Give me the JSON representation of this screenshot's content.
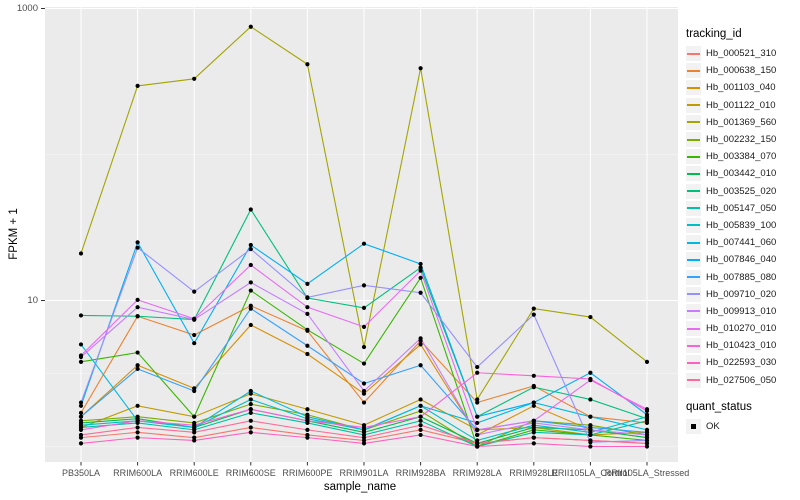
{
  "figure": {
    "background": "#ffffff",
    "panel_background": "#ebebeb",
    "grid_major_color": "#ffffff",
    "grid_minor_color": "#f7f7f7",
    "tick_mark_color": "#333333",
    "axis_text_color": "#4d4d4d"
  },
  "axes": {
    "x": {
      "title": "sample_name"
    },
    "y": {
      "title": "FPKM + 1",
      "scale": "log10",
      "ticks": [
        {
          "value": 1000,
          "label": "1000"
        },
        {
          "value": 10,
          "label": "10"
        }
      ],
      "minor_gridlines": [
        100,
        3.1623,
        1
      ]
    }
  },
  "legend": {
    "tracking": {
      "title": "tracking_id"
    },
    "quant": {
      "title": "quant_status",
      "items": [
        {
          "label": "OK"
        }
      ],
      "marker_color": "#000000"
    }
  },
  "chart_data": {
    "type": "line",
    "xlabel": "sample_name",
    "ylabel": "FPKM + 1",
    "y_scale": "log10",
    "ylim": [
      0.78,
      1100
    ],
    "grid": true,
    "legend_position": "right",
    "point_color": "#000000",
    "categories": [
      "PB350LA",
      "RRIM600LA",
      "RRIM600LE",
      "RRIM600SE",
      "RRIM600PE",
      "RRIM901LA",
      "RRIM928BA",
      "RRIM928LA",
      "RRIM928LE",
      "RRII105LA_Control",
      "RRII105LA_Stressed"
    ],
    "series": [
      {
        "name": "Hb_000521_310",
        "color": "#F8766D",
        "values": [
          1.15,
          1.25,
          1.15,
          1.35,
          1.2,
          1.1,
          1.3,
          1.05,
          1.15,
          1.1,
          1.05
        ]
      },
      {
        "name": "Hb_000638_150",
        "color": "#EA8331",
        "values": [
          1.7,
          7.8,
          5.8,
          9.2,
          6.2,
          2.0,
          5.3,
          2.0,
          2.6,
          1.6,
          1.45
        ]
      },
      {
        "name": "Hb_001103_040",
        "color": "#D89000",
        "values": [
          1.6,
          3.6,
          2.5,
          6.8,
          4.3,
          2.3,
          5.0,
          1.2,
          1.9,
          1.3,
          1.15
        ]
      },
      {
        "name": "Hb_001122_010",
        "color": "#C09B00",
        "values": [
          1.35,
          1.9,
          1.6,
          2.3,
          1.8,
          1.4,
          2.1,
          1.3,
          1.35,
          1.2,
          1.25
        ]
      },
      {
        "name": "Hb_001369_560",
        "color": "#A3A500",
        "values": [
          21,
          295,
          330,
          750,
          415,
          4.8,
          390,
          2.1,
          8.8,
          7.7,
          3.8
        ]
      },
      {
        "name": "Hb_002232_150",
        "color": "#7CAE00",
        "values": [
          1.5,
          1.6,
          1.45,
          1.95,
          1.65,
          1.3,
          1.75,
          1.0,
          1.5,
          1.4,
          1.2
        ]
      },
      {
        "name": "Hb_003384_070",
        "color": "#39B600",
        "values": [
          3.8,
          4.4,
          1.6,
          11.7,
          6.3,
          3.7,
          14.3,
          1.0,
          1.3,
          1.2,
          1.1
        ]
      },
      {
        "name": "Hb_003442_010",
        "color": "#00BB4E",
        "values": [
          1.45,
          1.55,
          1.35,
          1.8,
          1.5,
          1.25,
          1.6,
          1.05,
          1.35,
          1.3,
          1.15
        ]
      },
      {
        "name": "Hb_003525_020",
        "color": "#00BF7D",
        "values": [
          7.9,
          7.8,
          7.4,
          42,
          10.4,
          8.9,
          16.8,
          1.6,
          2.55,
          2.1,
          1.55
        ]
      },
      {
        "name": "Hb_005147_050",
        "color": "#00C1A3",
        "values": [
          1.35,
          1.45,
          1.3,
          1.7,
          1.45,
          1.2,
          1.5,
          1.0,
          1.25,
          1.2,
          1.5
        ]
      },
      {
        "name": "Hb_005839_100",
        "color": "#00BFC4",
        "values": [
          1.4,
          1.5,
          1.35,
          2.1,
          1.55,
          1.3,
          1.9,
          1.1,
          1.4,
          1.25,
          1.6
        ]
      },
      {
        "name": "Hb_007441_060",
        "color": "#00BAE0",
        "values": [
          5.0,
          1.5,
          1.35,
          2.4,
          1.6,
          1.3,
          1.9,
          1.45,
          2.0,
          1.6,
          1.3
        ]
      },
      {
        "name": "Hb_007846_040",
        "color": "#00B0F6",
        "values": [
          1.9,
          25,
          5.1,
          24,
          13,
          24.5,
          17.8,
          1.6,
          2.0,
          3.2,
          1.65
        ]
      },
      {
        "name": "Hb_007885_080",
        "color": "#35A2FF",
        "values": [
          1.6,
          3.4,
          2.4,
          8.8,
          4.9,
          2.7,
          3.6,
          1.3,
          1.5,
          1.35,
          1.25
        ]
      },
      {
        "name": "Hb_009710_020",
        "color": "#9590FF",
        "values": [
          2.0,
          23,
          11.5,
          22.5,
          10.5,
          12.7,
          11.3,
          3.5,
          8.0,
          1.07,
          1.1
        ]
      },
      {
        "name": "Hb_009913_010",
        "color": "#C77CFF",
        "values": [
          4.1,
          9.0,
          7.4,
          13.3,
          8.1,
          2.4,
          5.5,
          1.2,
          1.45,
          1.3,
          1.2
        ]
      },
      {
        "name": "Hb_010270_010",
        "color": "#E76BF3",
        "values": [
          4.2,
          10.1,
          7.5,
          17.5,
          9.0,
          6.6,
          16,
          1.3,
          1.5,
          2.85,
          1.8
        ]
      },
      {
        "name": "Hb_010423_010",
        "color": "#FA62DB",
        "values": [
          1.3,
          1.5,
          1.4,
          1.8,
          1.5,
          1.35,
          1.6,
          3.2,
          3.05,
          2.9,
          1.75
        ]
      },
      {
        "name": "Hb_022593_030",
        "color": "#FF62BC",
        "values": [
          1.05,
          1.15,
          1.1,
          1.25,
          1.15,
          1.05,
          1.2,
          1.0,
          1.05,
          1.0,
          1.0
        ]
      },
      {
        "name": "Hb_027506_050",
        "color": "#FF6A98",
        "values": [
          1.2,
          1.35,
          1.25,
          1.5,
          1.3,
          1.15,
          1.4,
          1.05,
          1.15,
          1.1,
          1.05
        ]
      }
    ]
  }
}
